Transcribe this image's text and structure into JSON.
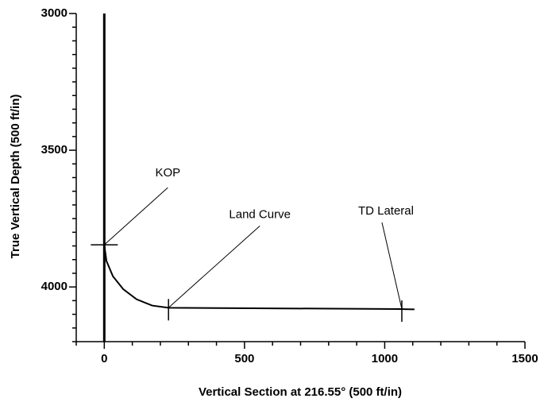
{
  "chart_data": {
    "type": "line",
    "xlabel": "Vertical Section at 216.55° (500 ft/in)",
    "ylabel": "True Vertical Depth (500 ft/in)",
    "xlim": [
      -100,
      1500
    ],
    "ylim": [
      3000,
      4200
    ],
    "y_inverted": true,
    "xticks": [
      0,
      500,
      1000,
      1500
    ],
    "yticks": [
      3000,
      3500,
      4000
    ],
    "xminorticks": [
      -100,
      100,
      200,
      300,
      400,
      600,
      700,
      800,
      900,
      1100,
      1200,
      1300,
      1400
    ],
    "yminorticks": [
      3050,
      3100,
      3150,
      3200,
      3250,
      3300,
      3350,
      3400,
      3450,
      3550,
      3600,
      3650,
      3700,
      3750,
      3800,
      3850,
      3900,
      3950,
      4050,
      4100,
      4150,
      4200
    ],
    "vline": 0,
    "series": [
      {
        "color": "#000000",
        "x": [
          0,
          0,
          7.8,
          30.8,
          67.4,
          115,
          170.5,
          229,
          1061,
          1106
        ],
        "values": [
          3000,
          3846,
          3905,
          3961,
          4008,
          4045,
          4068,
          4076,
          4081,
          4082
        ]
      }
    ],
    "annotations": [
      {
        "text": "KOP",
        "x": 0,
        "y": 3846
      },
      {
        "text": "Land Curve",
        "x": 229,
        "y": 4076
      },
      {
        "text": "TD Lateral",
        "x": 1061,
        "y": 4081
      }
    ]
  }
}
